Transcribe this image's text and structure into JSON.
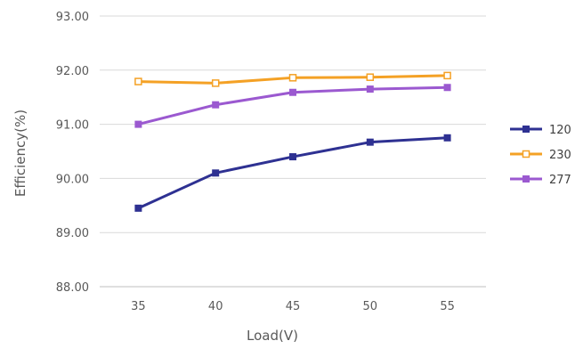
{
  "chart_data": {
    "type": "line",
    "xlabel": "Load(V)",
    "ylabel": "Efficiency(%)",
    "categories": [
      "35",
      "40",
      "45",
      "50",
      "55"
    ],
    "ylim": [
      88,
      93
    ],
    "y_ticks": [
      "88.00",
      "89.00",
      "90.00",
      "91.00",
      "92.00",
      "93.00"
    ],
    "grid": "horizontal",
    "legend_position": "right",
    "series": [
      {
        "name": "120",
        "color": "#2E3192",
        "marker": "square-filled",
        "values": [
          89.45,
          90.1,
          90.4,
          90.67,
          90.75
        ]
      },
      {
        "name": "230",
        "color": "#F4A125",
        "marker": "square-open",
        "values": [
          91.79,
          91.76,
          91.86,
          91.87,
          91.9
        ]
      },
      {
        "name": "277",
        "color": "#9B59D0",
        "marker": "square-filled",
        "values": [
          91.0,
          91.36,
          91.59,
          91.65,
          91.68
        ]
      }
    ]
  }
}
